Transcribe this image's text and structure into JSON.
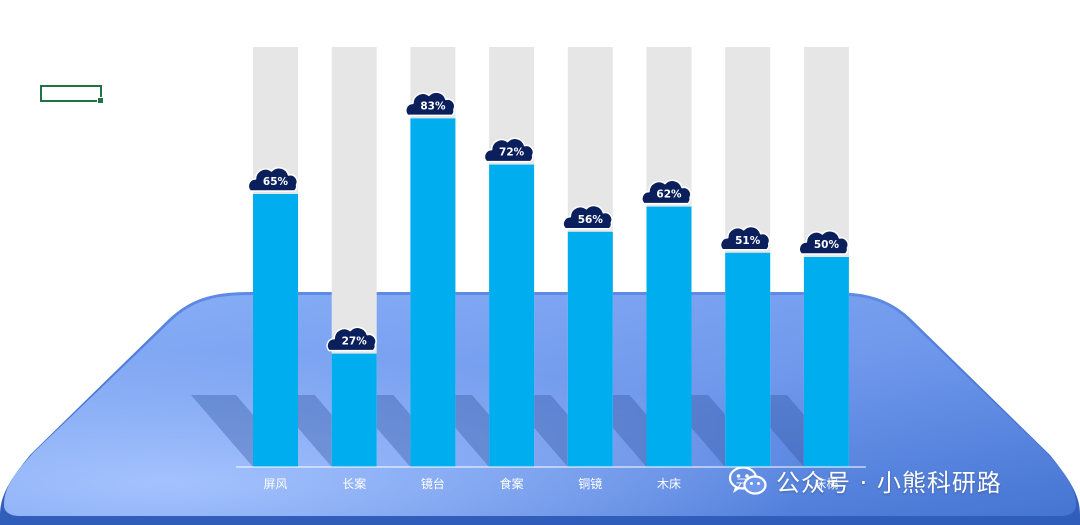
{
  "chart_data": {
    "type": "bar",
    "categories": [
      "屏风",
      "长案",
      "镜台",
      "食案",
      "铜镜",
      "木床",
      "云榻",
      "床榻"
    ],
    "values": [
      65,
      27,
      83,
      72,
      56,
      62,
      51,
      50
    ],
    "data_labels": [
      "65%",
      "27%",
      "83%",
      "72%",
      "56%",
      "62%",
      "51%",
      "50%"
    ],
    "ylim": [
      0,
      100
    ],
    "title": "",
    "xlabel": "",
    "ylabel": "",
    "grid": false,
    "legend": "none",
    "colors": {
      "bar": "#00AEEF",
      "track": "#E6E6E6",
      "cloud": "#0A1F5C",
      "platform_light": "#7FA8F5",
      "platform_dark": "#3E6FD0"
    }
  },
  "watermark": {
    "icon": "wechat-icon",
    "text": "公众号 · 小熊科研路"
  }
}
